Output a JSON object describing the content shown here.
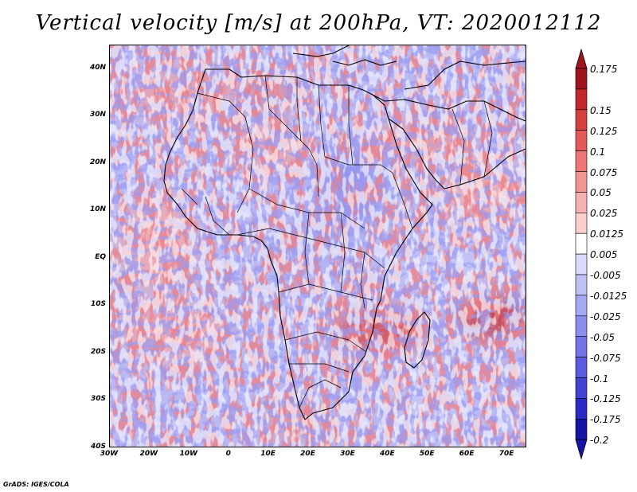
{
  "title": "Vertical velocity [m/s] at 200hPa, VT: 2020012112",
  "credit": "GrADS: IGES/COLA",
  "map": {
    "lat_labels": [
      "40N",
      "30N",
      "20N",
      "10N",
      "EQ",
      "10S",
      "20S",
      "30S",
      "40S"
    ],
    "lon_labels": [
      "30W",
      "20W",
      "10W",
      "0",
      "10E",
      "20E",
      "30E",
      "40E",
      "50E",
      "60E",
      "70E"
    ],
    "lat_range": [
      -40,
      45
    ],
    "lon_range": [
      -30,
      75
    ]
  },
  "colorbar": {
    "labels": [
      "0.175",
      "0.15",
      "0.125",
      "0.1",
      "0.075",
      "0.05",
      "0.025",
      "0.0125",
      "0.005",
      "-0.005",
      "-0.0125",
      "-0.025",
      "-0.05",
      "-0.075",
      "-0.1",
      "-0.125",
      "-0.175",
      "-0.2"
    ],
    "colors": [
      "#a0141e",
      "#c3262b",
      "#d6403f",
      "#e35b58",
      "#ec7774",
      "#f29492",
      "#f7b1b0",
      "#fbcfce",
      "#ffffff",
      "#d9dbfb",
      "#bfc1f6",
      "#a5a8f2",
      "#8c8eed",
      "#7375e6",
      "#5b5cdd",
      "#4243d2",
      "#2a2bc4",
      "#1414a6"
    ]
  }
}
